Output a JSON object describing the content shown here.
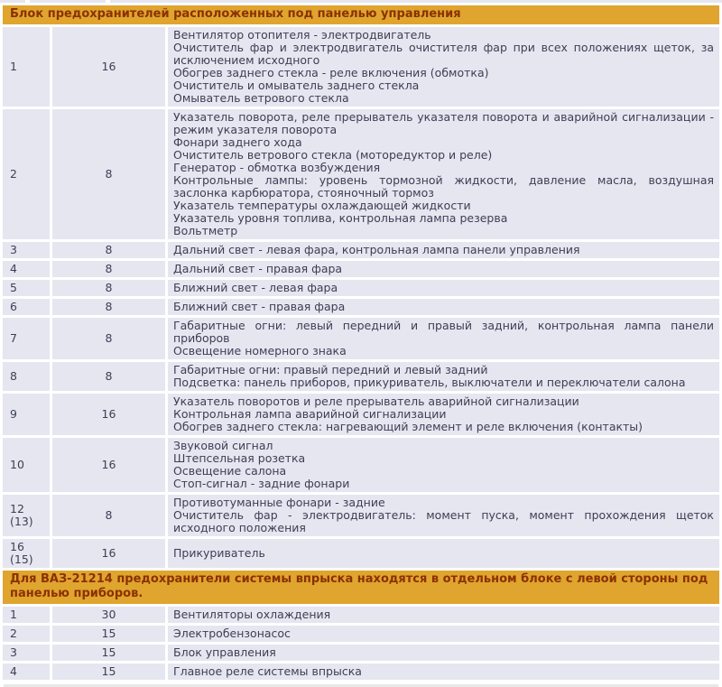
{
  "colors": {
    "header_bg": "#dfa52e",
    "header_text": "#8b3104",
    "cell_bg": "#e6e6f1",
    "body_text": "#3e3e54",
    "divider": "#ffffff"
  },
  "table1": {
    "header": "Блок предохранителей расположенных под панелью управления",
    "rows": [
      {
        "num": "1",
        "amp": "16",
        "lines": [
          "Вентилятор отопителя - электродвигатель",
          "Очиститель фар и электродвигатель очистителя фар при всех положениях щеток, за исключением исходного",
          "Обогрев заднего стекла - реле включения (обмотка)",
          "Очиститель и омыватель заднего стекла",
          "Омыватель ветрового стекла"
        ]
      },
      {
        "num": "2",
        "amp": "8",
        "lines": [
          "Указатель поворота, реле прерыватель указателя поворота и аварийной сигнализации - режим указателя поворота",
          "Фонари заднего хода",
          "Очиститель ветрового стекла (моторедуктор и реле)",
          "Генератор - обмотка возбуждения",
          "Контрольные лампы: уровень тормозной жидкости, давление масла, воздушная заслонка карбюратора, стояночный тормоз",
          "Указатель температуры охлаждающей жидкости",
          "Указатель уровня топлива, контрольная лампа резерва",
          "Вольтметр"
        ]
      },
      {
        "num": "3",
        "amp": "8",
        "lines": [
          "Дальний свет - левая фара, контрольная лампа панели управления"
        ]
      },
      {
        "num": "4",
        "amp": "8",
        "lines": [
          "Дальний свет - правая фара"
        ]
      },
      {
        "num": "5",
        "amp": "8",
        "lines": [
          "Ближний свет - левая фара"
        ]
      },
      {
        "num": "6",
        "amp": "8",
        "lines": [
          "Ближний свет - правая фара"
        ]
      },
      {
        "num": "7",
        "amp": "8",
        "lines": [
          "Габаритные огни: левый передний и правый задний, контрольная лампа панели приборов",
          "Освещение номерного знака"
        ]
      },
      {
        "num": "8",
        "amp": "8",
        "lines": [
          "Габаритные огни: правый передний и левый задний",
          "Подсветка: панель приборов, прикуриватель, выключатели и переключатели салона"
        ]
      },
      {
        "num": "9",
        "amp": "16",
        "lines": [
          "Указатель поворотов и реле прерыватель аварийной сигнализации",
          "Контрольная лампа аварийной сигнализации",
          "Обогрев заднего стекла: нагревающий элемент и реле включения (контакты)"
        ]
      },
      {
        "num": "10",
        "amp": "16",
        "lines": [
          "Звуковой сигнал",
          "Штепсельная розетка",
          "Освещение салона",
          "Стоп-сигнал - задние фонари"
        ]
      },
      {
        "num": "12 (13)",
        "amp": "8",
        "lines": [
          "Противотуманные фонари - задние",
          "Очиститель фар - электродвигатель: момент пуска, момент прохождения щеток исходного положения"
        ]
      },
      {
        "num": "16 (15)",
        "amp": "16",
        "lines": [
          "Прикуриватель"
        ]
      }
    ]
  },
  "table2": {
    "header": "Для ВАЗ-21214 предохранители системы впрыска находятся в отдельном блоке с левой стороны под панелью приборов.",
    "rows": [
      {
        "num": "1",
        "amp": "30",
        "lines": [
          "Вентиляторы охлаждения"
        ]
      },
      {
        "num": "2",
        "amp": "15",
        "lines": [
          "Электробензонасос"
        ]
      },
      {
        "num": "3",
        "amp": "15",
        "lines": [
          "Блок управления"
        ]
      },
      {
        "num": "4",
        "amp": "15",
        "lines": [
          "Главное реле системы впрыска"
        ]
      }
    ]
  }
}
